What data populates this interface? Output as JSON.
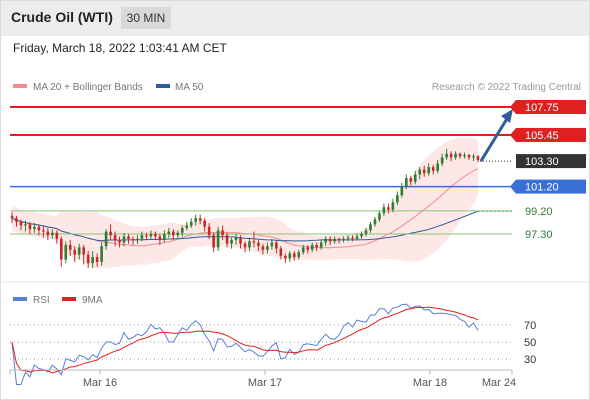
{
  "header": {
    "title": "Crude Oil (WTI)",
    "interval_button": "30 MIN"
  },
  "datetime": "Friday, March 18, 2022 1:03:41 AM CET",
  "legend": {
    "ma20_label": "MA 20 + Bollinger Bands",
    "ma50_label": "MA 50",
    "ma20_color": "#f08c8c",
    "ma50_color": "#2f5e9b"
  },
  "watermark": "Research © 2022 Trading Central",
  "levels": [
    {
      "value": 107.75,
      "label": "107.75",
      "style": "red-box"
    },
    {
      "value": 105.45,
      "label": "105.45",
      "style": "red-box"
    },
    {
      "value": 103.3,
      "label": "103.30",
      "style": "dark-box"
    },
    {
      "value": 101.2,
      "label": "101.20",
      "style": "blue-box"
    },
    {
      "value": 99.2,
      "label": "99.20",
      "style": "green-text"
    },
    {
      "value": 97.3,
      "label": "97.30",
      "style": "green-text"
    }
  ],
  "colors": {
    "resistance": "#e02020",
    "pivot": "#3a6fd8",
    "support": "#2e7d32",
    "support_line": "#8ac47a",
    "up_candle": "#2e7d32",
    "down_candle": "#c62828",
    "arrow": "#2f5e9b"
  },
  "rsi_legend": {
    "rsi_label": "RSI",
    "ma_label": "9MA",
    "rsi_color": "#5a7fd8",
    "ma_color": "#e02020"
  },
  "rsi_levels": [
    "70",
    "50",
    "30"
  ],
  "x_labels": [
    "Mar 16",
    "Mar 17",
    "Mar 18",
    "Mar 24"
  ],
  "chart_data": {
    "type": "candlestick",
    "current_price": 103.3,
    "ylim": [
      93.5,
      108.5
    ],
    "candles": [
      [
        98.8,
        98.6,
        99.1,
        98.2
      ],
      [
        98.6,
        98.3,
        98.8,
        97.9
      ],
      [
        98.3,
        98.0,
        98.5,
        97.6
      ],
      [
        98.0,
        98.1,
        98.4,
        97.5
      ],
      [
        98.1,
        97.7,
        98.3,
        97.3
      ],
      [
        97.7,
        97.9,
        98.2,
        97.4
      ],
      [
        97.9,
        97.6,
        98.1,
        97.2
      ],
      [
        97.6,
        97.5,
        97.9,
        97.0
      ],
      [
        97.5,
        97.2,
        97.8,
        96.8
      ],
      [
        97.2,
        97.4,
        97.7,
        96.9
      ],
      [
        97.4,
        96.9,
        97.6,
        96.5
      ],
      [
        96.9,
        95.2,
        97.1,
        94.6
      ],
      [
        95.2,
        96.4,
        96.7,
        94.9
      ],
      [
        96.4,
        96.0,
        96.8,
        95.5
      ],
      [
        96.0,
        95.6,
        96.3,
        95.0
      ],
      [
        95.6,
        96.2,
        96.5,
        95.2
      ],
      [
        96.2,
        95.6,
        96.4,
        94.8
      ],
      [
        95.6,
        94.9,
        95.9,
        94.5
      ],
      [
        94.9,
        95.4,
        95.9,
        94.5
      ],
      [
        95.4,
        95.0,
        95.7,
        94.6
      ],
      [
        95.0,
        96.3,
        96.6,
        94.7
      ],
      [
        96.3,
        97.5,
        97.7,
        96.0
      ],
      [
        97.5,
        97.2,
        98.1,
        96.8
      ],
      [
        97.2,
        96.8,
        97.5,
        96.3
      ],
      [
        96.8,
        96.6,
        97.1,
        96.2
      ],
      [
        96.6,
        97.1,
        97.4,
        96.3
      ],
      [
        97.1,
        96.9,
        97.3,
        96.5
      ],
      [
        96.9,
        96.8,
        97.1,
        96.4
      ],
      [
        96.8,
        96.9,
        97.2,
        96.5
      ],
      [
        96.9,
        97.2,
        97.5,
        96.7
      ],
      [
        97.2,
        97.1,
        97.4,
        96.8
      ],
      [
        97.1,
        97.3,
        97.6,
        96.9
      ],
      [
        97.3,
        97.1,
        97.5,
        96.8
      ],
      [
        97.1,
        96.8,
        97.3,
        96.4
      ],
      [
        96.8,
        97.3,
        97.6,
        96.6
      ],
      [
        97.3,
        97.5,
        97.8,
        97.0
      ],
      [
        97.5,
        97.2,
        97.7,
        96.8
      ],
      [
        97.2,
        97.4,
        97.6,
        96.9
      ],
      [
        97.4,
        97.8,
        98.0,
        97.1
      ],
      [
        97.8,
        98.0,
        98.3,
        97.6
      ],
      [
        98.0,
        98.3,
        98.6,
        97.8
      ],
      [
        98.3,
        98.6,
        98.9,
        98.0
      ],
      [
        98.6,
        98.4,
        98.9,
        98.1
      ],
      [
        98.4,
        97.9,
        98.6,
        97.5
      ],
      [
        97.9,
        97.2,
        98.2,
        96.9
      ],
      [
        97.2,
        96.2,
        97.4,
        95.8
      ],
      [
        96.2,
        97.6,
        97.9,
        95.9
      ],
      [
        97.6,
        97.2,
        98.0,
        96.8
      ],
      [
        97.2,
        96.5,
        97.4,
        96.2
      ],
      [
        96.5,
        96.8,
        97.0,
        96.1
      ],
      [
        96.8,
        97.0,
        97.3,
        96.4
      ],
      [
        97.0,
        96.5,
        97.2,
        96.1
      ],
      [
        96.5,
        96.2,
        96.7,
        95.8
      ],
      [
        96.2,
        96.7,
        97.0,
        95.9
      ],
      [
        96.7,
        96.6,
        97.5,
        96.2
      ],
      [
        96.6,
        96.3,
        96.8,
        95.9
      ],
      [
        96.3,
        96.0,
        96.5,
        95.6
      ],
      [
        96.0,
        96.3,
        96.6,
        95.7
      ],
      [
        96.3,
        96.6,
        96.9,
        96.0
      ],
      [
        96.6,
        96.1,
        96.8,
        95.7
      ],
      [
        96.1,
        95.5,
        96.3,
        95.2
      ],
      [
        95.5,
        95.3,
        95.7,
        94.9
      ],
      [
        95.3,
        95.7,
        95.9,
        95.0
      ],
      [
        95.7,
        95.4,
        95.9,
        95.1
      ],
      [
        95.4,
        95.8,
        96.0,
        95.2
      ],
      [
        95.8,
        96.2,
        96.4,
        95.6
      ],
      [
        96.2,
        96.0,
        96.4,
        95.7
      ],
      [
        96.0,
        96.4,
        96.6,
        95.8
      ],
      [
        96.4,
        96.2,
        96.6,
        95.9
      ],
      [
        96.2,
        96.6,
        96.8,
        96.0
      ],
      [
        96.6,
        96.9,
        97.1,
        96.3
      ],
      [
        96.9,
        96.7,
        97.1,
        96.4
      ],
      [
        96.7,
        96.9,
        97.1,
        96.5
      ],
      [
        96.9,
        96.8,
        97.0,
        96.5
      ],
      [
        96.8,
        96.9,
        97.1,
        96.6
      ],
      [
        96.9,
        97.0,
        97.2,
        96.7
      ],
      [
        97.0,
        96.9,
        97.2,
        96.7
      ],
      [
        96.9,
        97.1,
        97.3,
        96.8
      ],
      [
        97.1,
        97.3,
        97.5,
        96.9
      ],
      [
        97.3,
        97.6,
        97.8,
        97.1
      ],
      [
        97.6,
        98.1,
        98.3,
        97.4
      ],
      [
        98.1,
        98.5,
        98.7,
        97.9
      ],
      [
        98.5,
        99.0,
        99.2,
        98.3
      ],
      [
        99.0,
        99.5,
        99.8,
        98.8
      ],
      [
        99.5,
        99.3,
        99.8,
        99.0
      ],
      [
        99.3,
        99.9,
        100.2,
        99.1
      ],
      [
        99.9,
        100.5,
        100.8,
        99.7
      ],
      [
        100.5,
        101.2,
        101.5,
        100.3
      ],
      [
        101.2,
        101.9,
        102.2,
        101.0
      ],
      [
        101.9,
        101.6,
        102.1,
        101.3
      ],
      [
        101.6,
        102.2,
        102.5,
        101.4
      ],
      [
        102.2,
        102.6,
        102.8,
        101.8
      ],
      [
        102.6,
        102.3,
        102.9,
        102.0
      ],
      [
        102.3,
        102.8,
        103.1,
        102.1
      ],
      [
        102.8,
        102.5,
        103.0,
        102.2
      ],
      [
        102.5,
        103.1,
        103.4,
        102.3
      ],
      [
        103.1,
        103.6,
        103.9,
        102.9
      ],
      [
        103.6,
        103.9,
        104.3,
        103.4
      ],
      [
        103.9,
        103.6,
        104.1,
        103.3
      ],
      [
        103.6,
        103.9,
        104.1,
        103.4
      ],
      [
        103.9,
        103.7,
        104.0,
        103.5
      ],
      [
        103.7,
        103.8,
        104.0,
        103.5
      ],
      [
        103.8,
        103.6,
        103.9,
        103.4
      ],
      [
        103.6,
        103.7,
        103.9,
        103.3
      ],
      [
        103.7,
        103.4,
        103.8,
        103.2
      ]
    ]
  }
}
